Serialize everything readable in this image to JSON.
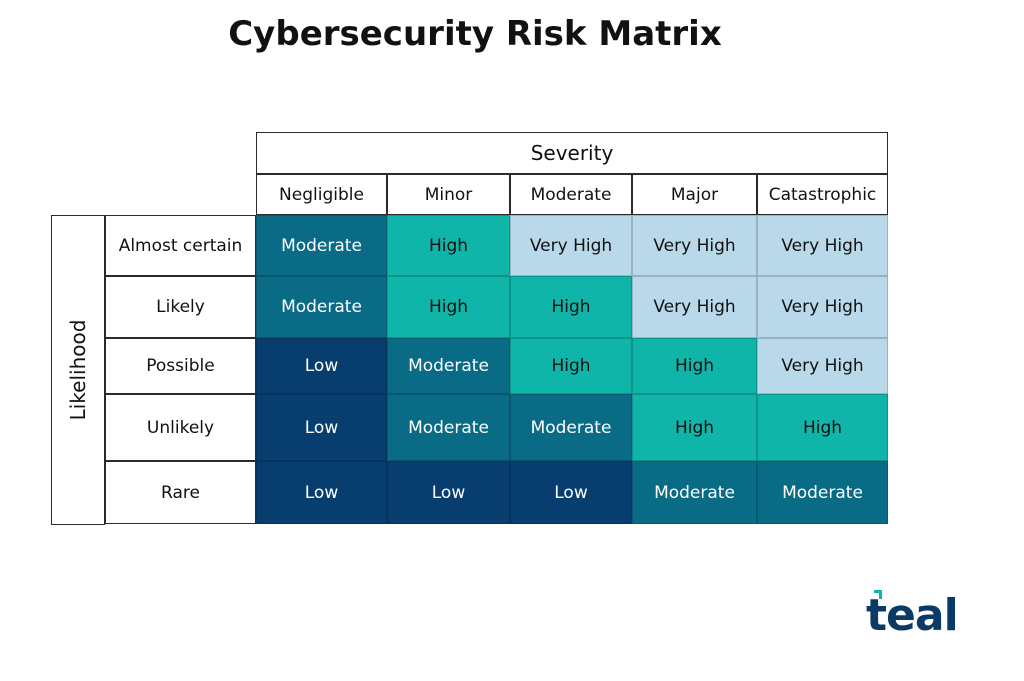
{
  "title": "Cybersecurity Risk Matrix",
  "severity_header": "Severity",
  "likelihood_header": "Likelihood",
  "severity_levels": [
    "Negligible",
    "Minor",
    "Moderate",
    "Major",
    "Catastrophic"
  ],
  "likelihood_levels": [
    "Almost certain",
    "Likely",
    "Possible",
    "Unlikely",
    "Rare"
  ],
  "matrix": [
    [
      "Moderate",
      "High",
      "Very High",
      "Very High",
      "Very High"
    ],
    [
      "Moderate",
      "High",
      "High",
      "Very High",
      "Very High"
    ],
    [
      "Low",
      "Moderate",
      "High",
      "High",
      "Very High"
    ],
    [
      "Low",
      "Moderate",
      "Moderate",
      "High",
      "High"
    ],
    [
      "Low",
      "Low",
      "Low",
      "Moderate",
      "Moderate"
    ]
  ],
  "colors": {
    "Low": "#083d70",
    "Moderate": "#0a6b87",
    "High": "#0fb5a8",
    "Very High": "#b9d9eb",
    "Low_text": "#ffffff",
    "Moderate_text": "#ffffff",
    "High_text": "#111111",
    "Very High_text": "#111111",
    "logo": "#0c3a66",
    "logo_accent": "#0fb5a8"
  },
  "logo": {
    "text": "teal",
    "icon": "teal-logo-mark-icon"
  }
}
